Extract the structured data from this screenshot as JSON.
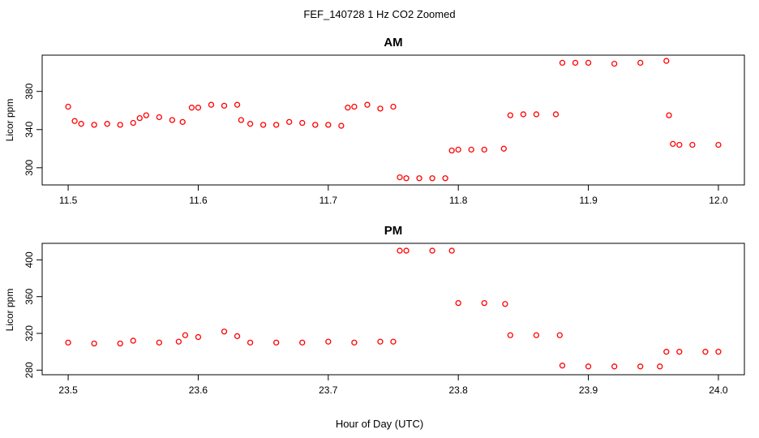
{
  "figure": {
    "title": "FEF_140728  1 Hz CO2 Zoomed",
    "xlabel": "Hour of Day (UTC)"
  },
  "colors": {
    "points": "#ff0000",
    "axis": "#000000",
    "background": "#ffffff"
  },
  "chart_data": [
    {
      "type": "scatter",
      "title": "AM",
      "ylabel": "Licor ppm",
      "xlim": [
        11.48,
        12.02
      ],
      "ylim": [
        282,
        418
      ],
      "xticks": [
        11.5,
        11.6,
        11.7,
        11.8,
        11.9,
        12.0
      ],
      "xtick_labels": [
        "11.5",
        "11.6",
        "11.7",
        "11.8",
        "11.9",
        "12.0"
      ],
      "yticks": [
        300,
        340,
        380
      ],
      "ytick_labels": [
        "300",
        "340",
        "380"
      ],
      "grid": false,
      "series": [
        {
          "x": [
            11.5,
            11.505,
            11.51,
            11.52,
            11.53,
            11.54,
            11.55,
            11.555,
            11.56,
            11.57,
            11.58,
            11.588,
            11.595,
            11.6,
            11.61,
            11.62,
            11.63,
            11.633,
            11.64,
            11.65,
            11.66,
            11.67,
            11.68,
            11.69,
            11.7,
            11.71,
            11.715,
            11.72,
            11.73,
            11.74,
            11.75,
            11.755,
            11.76,
            11.77,
            11.78,
            11.79,
            11.795,
            11.8,
            11.81,
            11.82,
            11.835,
            11.84,
            11.85,
            11.86,
            11.875,
            11.88,
            11.89,
            11.9,
            11.92,
            11.94,
            11.96,
            11.962,
            11.965,
            11.97,
            11.98,
            12.0
          ],
          "y": [
            364,
            349,
            346,
            345,
            346,
            345,
            347,
            352,
            355,
            353,
            350,
            348,
            363,
            363,
            366,
            365,
            366,
            350,
            346,
            345,
            345,
            348,
            347,
            345,
            345,
            344,
            363,
            364,
            366,
            362,
            364,
            290,
            289,
            289,
            289,
            289,
            318,
            319,
            319,
            319,
            320,
            355,
            356,
            356,
            356,
            410,
            410,
            410,
            409,
            410,
            412,
            355,
            325,
            324,
            324,
            324
          ]
        }
      ]
    },
    {
      "type": "scatter",
      "title": "PM",
      "ylabel": "Licor ppm",
      "xlim": [
        23.48,
        24.02
      ],
      "ylim": [
        275,
        418
      ],
      "xticks": [
        23.5,
        23.6,
        23.7,
        23.8,
        23.9,
        24.0
      ],
      "xtick_labels": [
        "23.5",
        "23.6",
        "23.7",
        "23.8",
        "23.9",
        "24.0"
      ],
      "yticks": [
        280,
        320,
        360,
        400
      ],
      "ytick_labels": [
        "280",
        "320",
        "360",
        "400"
      ],
      "grid": false,
      "series": [
        {
          "x": [
            23.5,
            23.52,
            23.54,
            23.55,
            23.57,
            23.585,
            23.59,
            23.6,
            23.62,
            23.63,
            23.64,
            23.66,
            23.68,
            23.7,
            23.72,
            23.74,
            23.75,
            23.755,
            23.76,
            23.78,
            23.795,
            23.8,
            23.82,
            23.836,
            23.84,
            23.86,
            23.878,
            23.88,
            23.9,
            23.92,
            23.94,
            23.955,
            23.96,
            23.97,
            23.99,
            24.0
          ],
          "y": [
            310,
            309,
            309,
            312,
            310,
            311,
            318,
            316,
            322,
            317,
            310,
            310,
            310,
            311,
            310,
            311,
            311,
            410,
            410,
            410,
            410,
            353,
            353,
            352,
            318,
            318,
            318,
            285,
            284,
            284,
            284,
            284,
            300,
            300,
            300,
            300
          ]
        }
      ]
    }
  ]
}
